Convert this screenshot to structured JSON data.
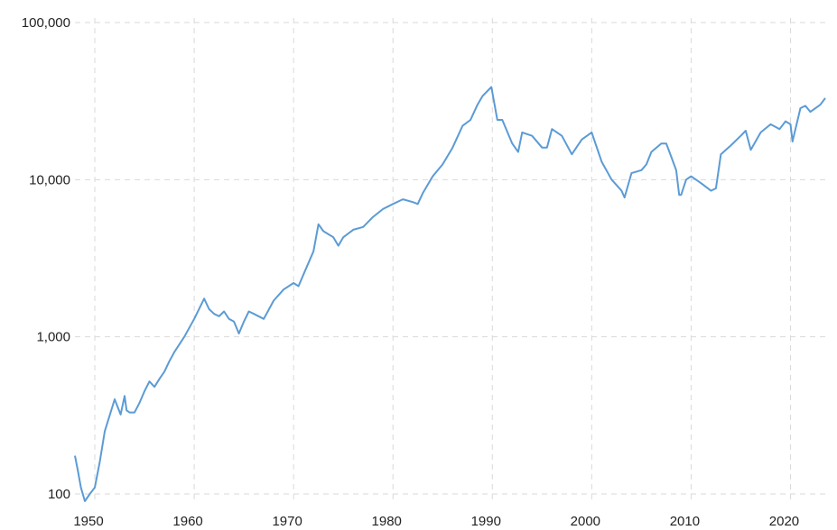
{
  "chart_data": {
    "type": "line",
    "title": "",
    "xlabel": "",
    "ylabel": "",
    "yscale": "log",
    "xlim": [
      1948.0,
      2023.5
    ],
    "ylim": [
      100,
      100000
    ],
    "grid": true,
    "legend": "none",
    "colors": {
      "series": "#5b9bd5",
      "grid": "#d9d9d9",
      "text": "#222222"
    },
    "y_ticks": [
      {
        "value": 100,
        "label": "100"
      },
      {
        "value": 1000,
        "label": "1,000"
      },
      {
        "value": 10000,
        "label": "10,000"
      },
      {
        "value": 100000,
        "label": "100,000"
      }
    ],
    "x_ticks": [
      {
        "value": 1950,
        "label": "1950"
      },
      {
        "value": 1960,
        "label": "1960"
      },
      {
        "value": 1970,
        "label": "1970"
      },
      {
        "value": 1980,
        "label": "1980"
      },
      {
        "value": 1990,
        "label": "1990"
      },
      {
        "value": 2000,
        "label": "2000"
      },
      {
        "value": 2010,
        "label": "2010"
      },
      {
        "value": 2020,
        "label": "2020"
      }
    ],
    "series": [
      {
        "x": [
          1948.0,
          1948.3,
          1948.6,
          1949.0,
          1949.5,
          1950.0,
          1950.5,
          1951.0,
          1952.0,
          1952.6,
          1953.0,
          1953.2,
          1953.5,
          1954.0,
          1954.5,
          1955.0,
          1955.5,
          1956.0,
          1956.5,
          1957.0,
          1957.5,
          1958.0,
          1959.0,
          1960.0,
          1961.0,
          1961.5,
          1962.0,
          1962.5,
          1963.0,
          1963.5,
          1964.0,
          1964.5,
          1965.0,
          1965.5,
          1966.0,
          1967.0,
          1968.0,
          1969.0,
          1970.0,
          1970.5,
          1971.0,
          1972.0,
          1972.5,
          1973.0,
          1974.0,
          1974.5,
          1975.0,
          1976.0,
          1977.0,
          1978.0,
          1979.0,
          1980.0,
          1981.0,
          1982.0,
          1982.5,
          1983.0,
          1984.0,
          1985.0,
          1986.0,
          1987.0,
          1987.8,
          1988.5,
          1989.0,
          1989.9,
          1990.5,
          1991.0,
          1992.0,
          1992.6,
          1993.0,
          1994.0,
          1995.0,
          1995.5,
          1996.0,
          1997.0,
          1998.0,
          1999.0,
          2000.0,
          2001.0,
          2002.0,
          2003.0,
          2003.3,
          2004.0,
          2005.0,
          2005.5,
          2006.0,
          2007.0,
          2007.5,
          2008.0,
          2008.5,
          2008.8,
          2009.0,
          2009.5,
          2010.0,
          2011.0,
          2012.0,
          2012.5,
          2013.0,
          2014.0,
          2015.0,
          2015.5,
          2016.0,
          2017.0,
          2018.0,
          2018.9,
          2019.5,
          2020.0,
          2020.2,
          2021.0,
          2021.5,
          2022.0,
          2023.0,
          2023.5
        ],
        "y": [
          175,
          140,
          110,
          90,
          100,
          110,
          160,
          250,
          400,
          320,
          420,
          340,
          330,
          330,
          380,
          450,
          520,
          480,
          540,
          600,
          700,
          800,
          1000,
          1300,
          1750,
          1500,
          1400,
          1350,
          1450,
          1300,
          1250,
          1050,
          1250,
          1450,
          1400,
          1300,
          1700,
          2000,
          2200,
          2100,
          2500,
          3500,
          5200,
          4700,
          4300,
          3800,
          4300,
          4800,
          5000,
          5800,
          6500,
          7000,
          7500,
          7200,
          7000,
          8200,
          10500,
          12500,
          16000,
          22000,
          24000,
          30000,
          34000,
          38900,
          24000,
          24000,
          17000,
          15000,
          20000,
          19000,
          16000,
          16000,
          21000,
          19000,
          14500,
          18000,
          20000,
          13000,
          10000,
          8500,
          7700,
          11000,
          11500,
          12500,
          15000,
          17000,
          17000,
          14000,
          11500,
          8000,
          8000,
          10000,
          10500,
          9500,
          8500,
          8800,
          14500,
          16500,
          19000,
          20500,
          15500,
          20000,
          22500,
          21000,
          23500,
          22500,
          17500,
          28500,
          29500,
          27000,
          30000,
          33000
        ]
      }
    ]
  }
}
